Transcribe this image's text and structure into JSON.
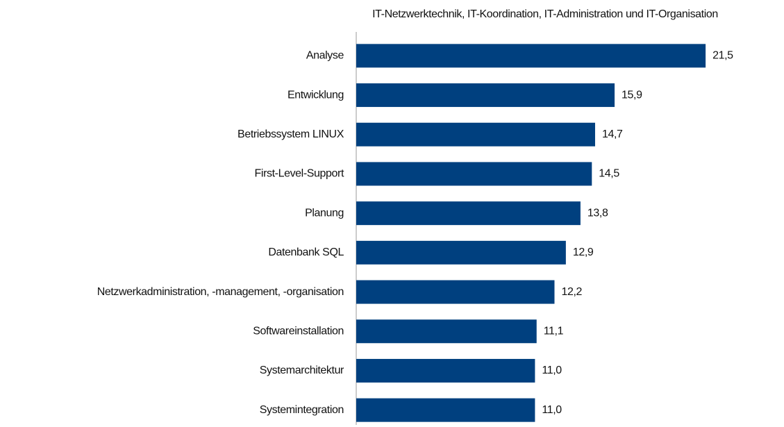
{
  "chart_data": {
    "type": "barh",
    "title": "IT-Netzwerktechnik, IT-Koordination, IT-Administration und IT-Organisation",
    "categories": [
      "Analyse",
      "Entwicklung",
      "Betriebssystem LINUX",
      "First-Level-Support",
      "Planung",
      "Datenbank SQL",
      "Netzwerkadministration, -management, -organisation",
      "Softwareinstallation",
      "Systemarchitektur",
      "Systemintegration"
    ],
    "values": [
      21.5,
      15.9,
      14.7,
      14.5,
      13.8,
      12.9,
      12.2,
      11.1,
      11.0,
      11.0
    ],
    "value_labels": [
      "21,5",
      "15,9",
      "14,7",
      "14,5",
      "13,8",
      "12,9",
      "12,2",
      "11,1",
      "11,0",
      "11,0"
    ],
    "color": "#00407f",
    "xlim": [
      0,
      25
    ]
  }
}
